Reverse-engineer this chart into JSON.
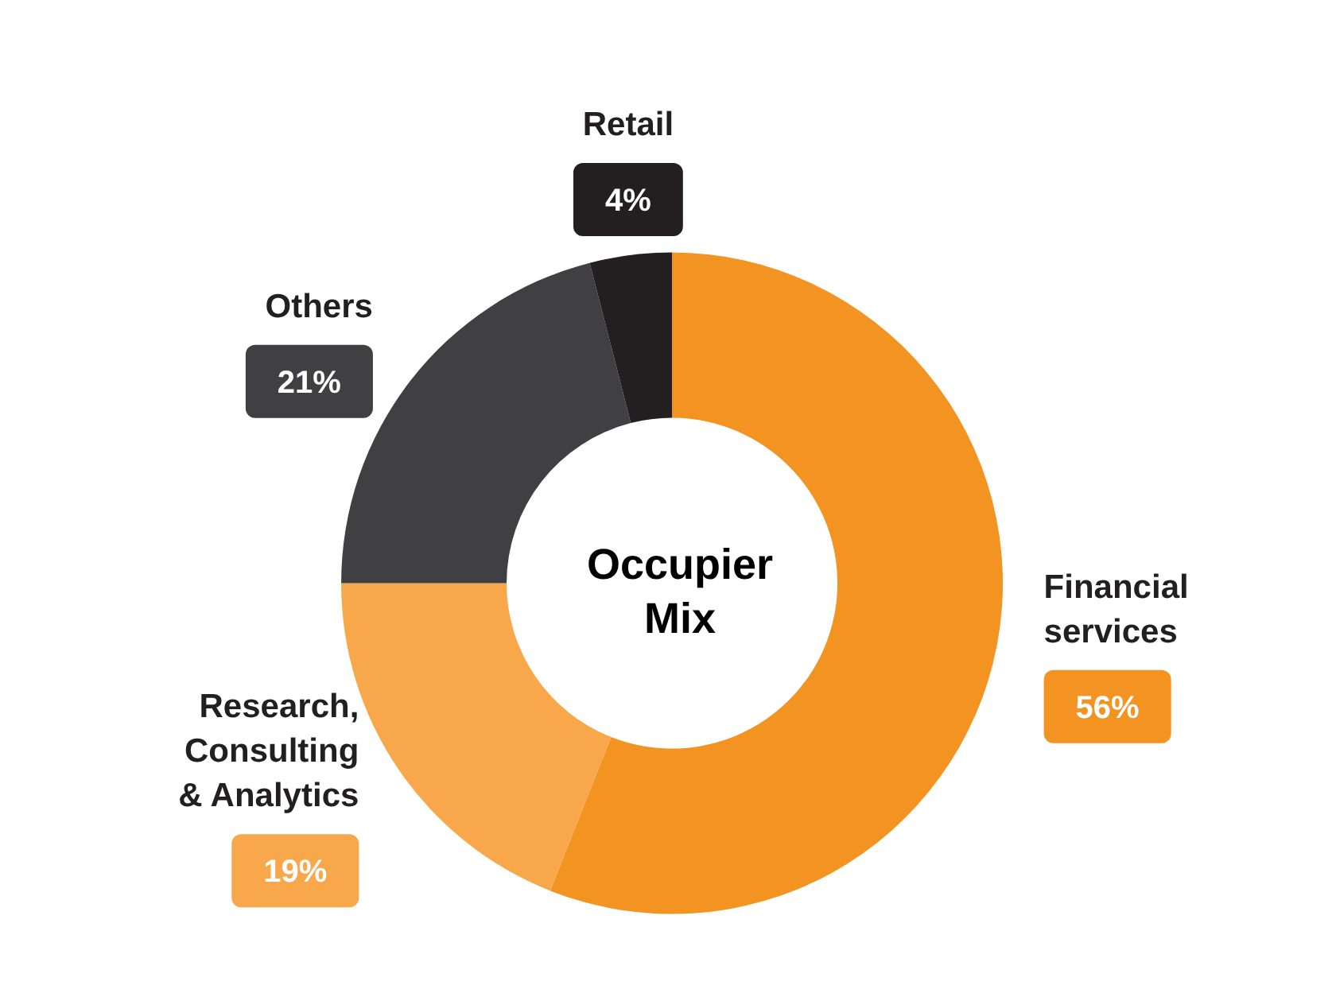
{
  "chart_data": {
    "type": "donut",
    "title": "Occupier Mix",
    "categories": [
      "Financial services",
      "Research, Consulting & Analytics",
      "Others",
      "Retail"
    ],
    "values": [
      56,
      19,
      21,
      4
    ],
    "colors": [
      "#f39322",
      "#f8a84a",
      "#404042",
      "#231f20"
    ],
    "value_labels": [
      "56%",
      "19%",
      "21%",
      "4%"
    ]
  }
}
